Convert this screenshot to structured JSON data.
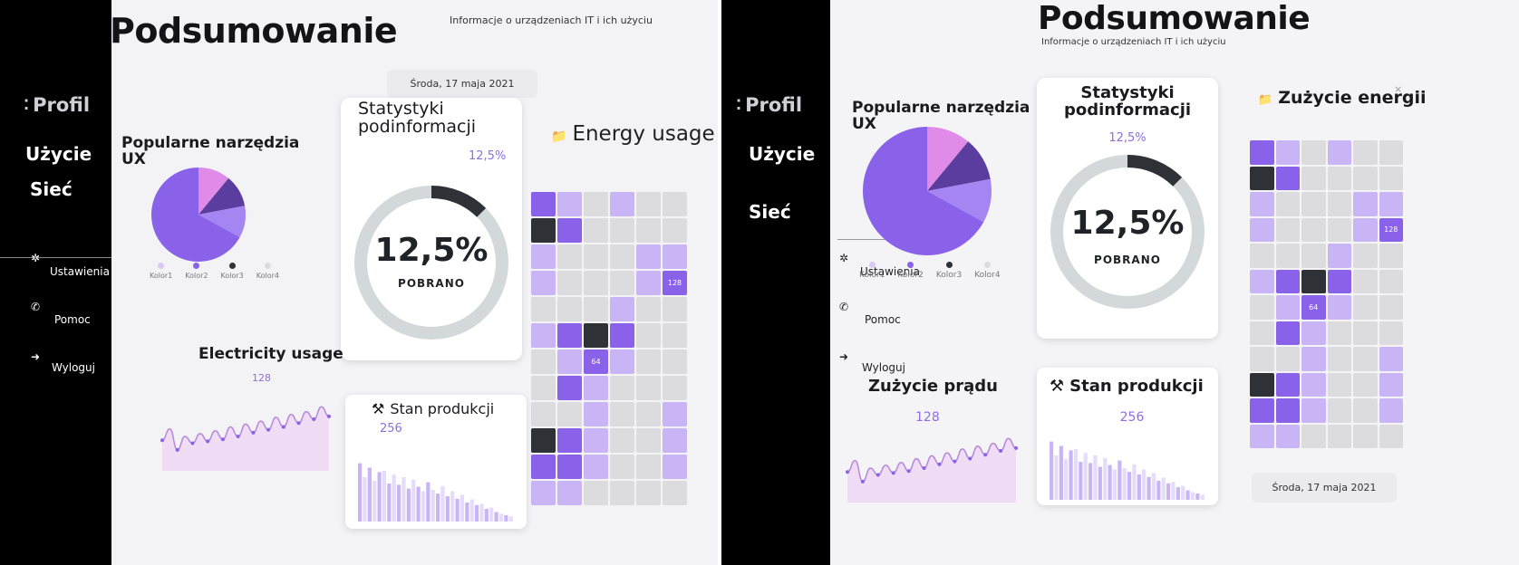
{
  "nav": {
    "profile": "Profil",
    "usage": "Użycie",
    "network": "Sieć",
    "settings": "Ustawienia",
    "help": "Pomoc",
    "logout": "Wyloguj",
    "icons": [
      "gear-icon",
      "phone-icon",
      "logout-icon"
    ]
  },
  "left": {
    "title": "Podsumowanie",
    "subtitle": "Informacje o urządzeniach IT i ich użyciu",
    "date": "Środa, 17 maja 2021",
    "tools_title": "Popularne narzędzia UX",
    "legend": [
      "Kolor1",
      "Kolor2",
      "Kolor3",
      "Kolor4"
    ],
    "stats_title": "Statystyki podinformacji",
    "stats_small": "12,5%",
    "stats_big": "12,5%",
    "stats_caption": "POBRANO",
    "energy_title": "Energy usage",
    "electricity_title": "Electricity usage",
    "electricity_value": "128",
    "production_title": "Stan produkcji",
    "production_value": "256",
    "heat_label_a": "128",
    "heat_label_b": "64"
  },
  "right": {
    "title": "Podsumowanie",
    "subtitle": "Informacje o urządzeniach IT i ich użyciu",
    "date": "Środa, 17 maja 2021",
    "tools_title": "Popularne narzędzia UX",
    "legend": [
      "Kolor1",
      "Kolor2",
      "Kolor3",
      "Kolor4"
    ],
    "stats_title": "Statystyki podinformacji",
    "stats_small": "12,5%",
    "stats_big": "12,5%",
    "stats_caption": "POBRANO",
    "energy_title": "Zużycie energii",
    "electricity_title": "Zużycie prądu",
    "electricity_value": "128",
    "production_title": "Stan produkcji",
    "production_value": "256",
    "heat_label_a": "128",
    "heat_label_b": "64"
  },
  "colors": {
    "accent": "#8a62ea",
    "light": "#c9b5f5",
    "dark": "#2e3135",
    "pink": "#e08be8",
    "indigo": "#5a3d9e"
  },
  "chart_data": [
    {
      "type": "pie",
      "title": "Popularne narzędzia UX",
      "categories": [
        "Kolor1",
        "Kolor2",
        "Kolor3",
        "Kolor4"
      ],
      "values": [
        11,
        11,
        11,
        67
      ]
    },
    {
      "type": "pie",
      "title": "Statystyki podinformacji",
      "categories": [
        "POBRANO"
      ],
      "values": [
        12.5
      ]
    },
    {
      "type": "line",
      "title": "Electricity usage",
      "values": [
        30,
        42,
        20,
        34,
        27,
        37,
        29,
        40,
        31,
        44,
        34,
        47,
        38,
        50,
        41,
        54,
        44,
        57,
        48,
        60,
        52,
        65,
        55
      ]
    },
    {
      "type": "bar",
      "title": "Stan produkcji",
      "values": [
        92,
        70,
        85,
        64,
        78,
        80,
        60,
        74,
        58,
        70,
        52,
        66,
        55,
        48,
        62,
        50,
        44,
        56,
        40,
        48,
        36,
        42,
        30,
        35,
        26,
        28,
        20,
        22,
        15,
        12,
        10,
        8
      ]
    },
    {
      "type": "heatmap",
      "title": "Energy usage",
      "rows": [
        [
          2,
          1,
          0,
          1,
          0,
          0
        ],
        [
          3,
          2,
          0,
          0,
          0,
          0
        ],
        [
          1,
          0,
          0,
          0,
          1,
          1
        ],
        [
          1,
          0,
          0,
          0,
          1,
          2
        ],
        [
          0,
          0,
          0,
          1,
          0,
          0
        ],
        [
          1,
          2,
          3,
          2,
          0,
          0
        ],
        [
          0,
          1,
          2,
          1,
          0,
          0
        ],
        [
          0,
          2,
          1,
          0,
          0,
          0
        ],
        [
          0,
          0,
          1,
          0,
          0,
          1
        ],
        [
          3,
          2,
          1,
          0,
          0,
          1
        ],
        [
          2,
          2,
          1,
          0,
          0,
          1
        ],
        [
          1,
          1,
          0,
          0,
          0,
          0
        ]
      ]
    }
  ]
}
